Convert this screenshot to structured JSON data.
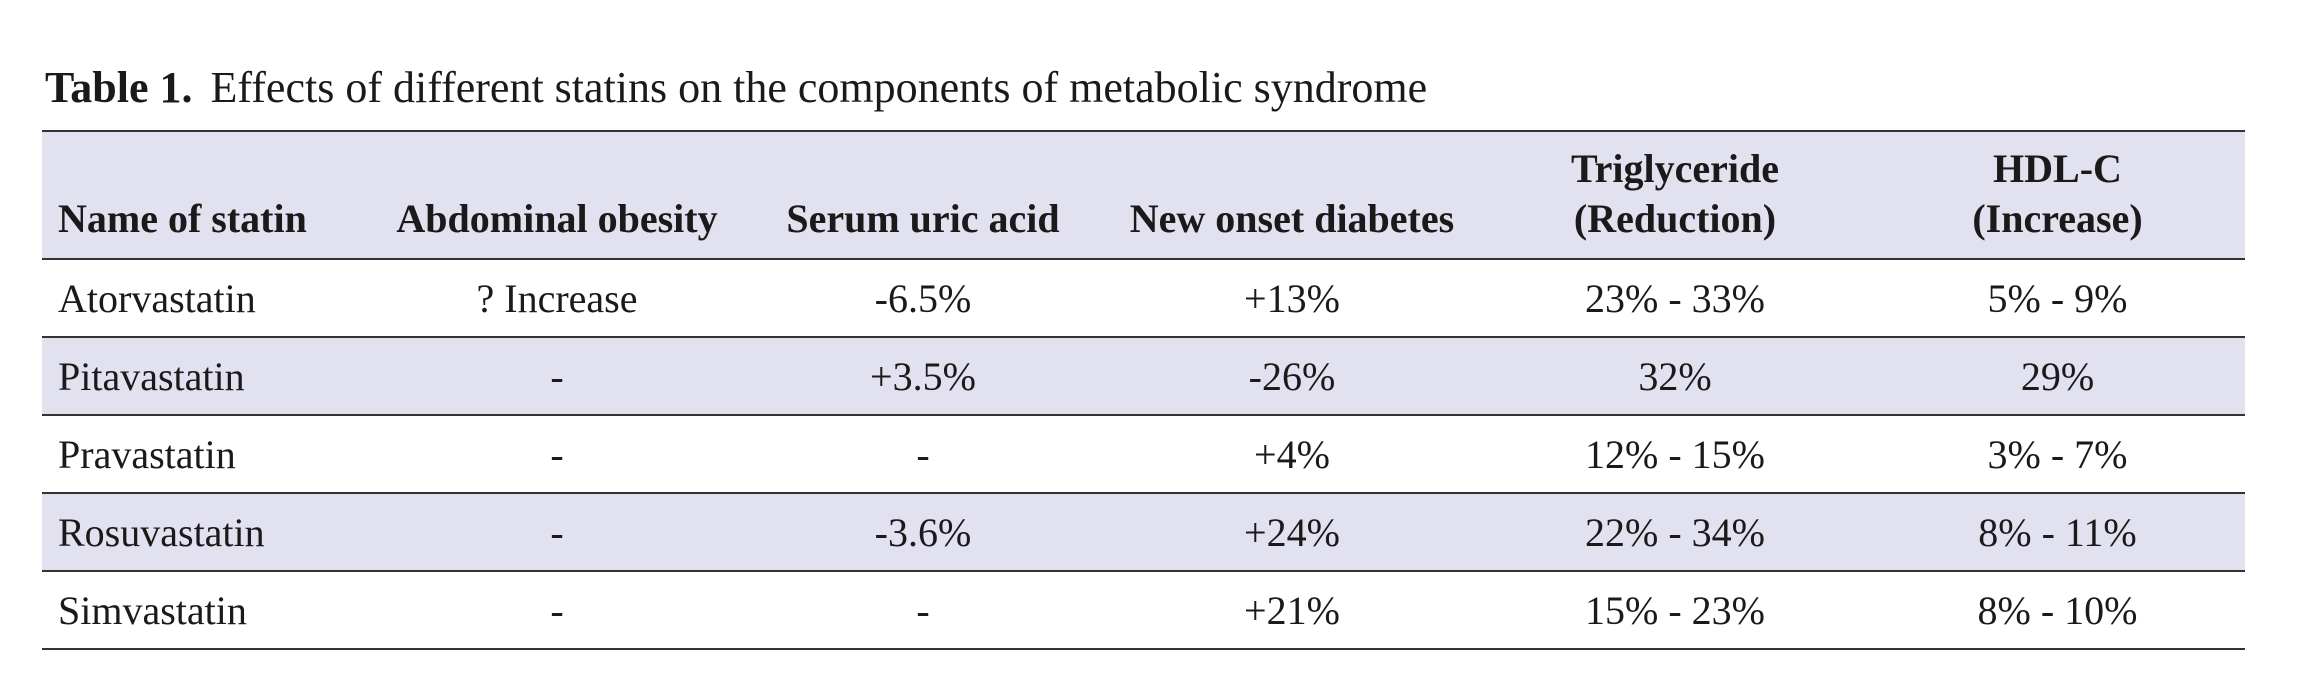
{
  "caption": {
    "label": "Table 1.",
    "text": "Effects of different statins on the components of metabolic syndrome"
  },
  "table": {
    "headers": [
      [
        "Name of statin"
      ],
      [
        "Abdominal obesity"
      ],
      [
        "Serum uric acid"
      ],
      [
        "New onset diabetes"
      ],
      [
        "Triglyceride",
        "(Reduction)"
      ],
      [
        "HDL-C",
        "(Increase)"
      ]
    ],
    "rows": [
      [
        "Atorvastatin",
        "? Increase",
        "-6.5%",
        "+13%",
        "23% - 33%",
        "5% - 9%"
      ],
      [
        "Pitavastatin",
        "-",
        "+3.5%",
        "-26%",
        "32%",
        "29%"
      ],
      [
        "Pravastatin",
        "-",
        "-",
        "+4%",
        "12% - 15%",
        "3% - 7%"
      ],
      [
        "Rosuvastatin",
        "-",
        "-3.6%",
        "+24%",
        "22% - 34%",
        "8% - 11%"
      ],
      [
        "Simvastatin",
        "-",
        "-",
        "+21%",
        "15% - 23%",
        "8% - 10%"
      ]
    ]
  },
  "colors": {
    "header_bg": "#e2e1ef",
    "shaded_row_bg": "#e2e1ef",
    "rule": "#333333"
  }
}
